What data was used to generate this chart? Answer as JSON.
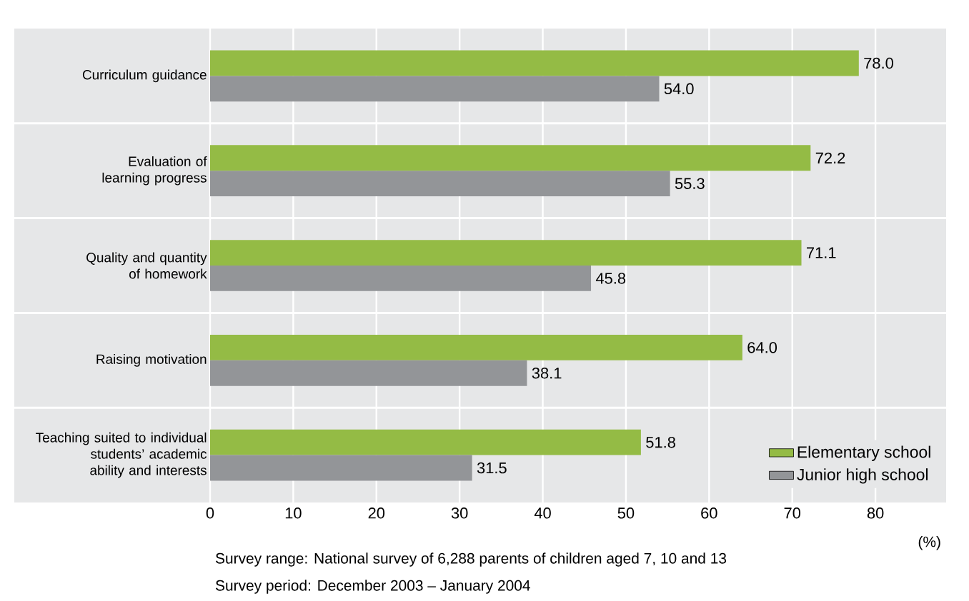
{
  "chart_data": {
    "type": "bar",
    "orientation": "horizontal",
    "xlabel": "(%)",
    "categories": [
      "Curriculum guidance",
      "Evaluation of learning progress",
      "Quality and quantity of homework",
      "Raising motivation",
      "Teaching suited to individual students’ academic ability and interests"
    ],
    "series": [
      {
        "name": "Elementary school",
        "color": "#94bb45",
        "values": [
          78.0,
          72.2,
          71.1,
          64.0,
          51.8
        ],
        "value_labels": [
          "78.0",
          "72.2",
          "71.1",
          "64.0",
          "51.8"
        ]
      },
      {
        "name": "Junior high school",
        "color": "#939598",
        "values": [
          54.0,
          55.3,
          45.8,
          38.1,
          31.5
        ],
        "value_labels": [
          "54.0",
          "55.3",
          "45.8",
          "38.1",
          "31.5"
        ]
      }
    ],
    "xlim": [
      0,
      88.5
    ],
    "xticks": [
      0,
      10,
      20,
      30,
      40,
      50,
      60,
      70,
      80
    ],
    "grid": "x",
    "legend": "bottom right",
    "annotations": [
      "Survey range: National survey of 6,288 parents of children aged 7, 10 and 13",
      "Survey period: December 2003 – January 2004"
    ]
  }
}
